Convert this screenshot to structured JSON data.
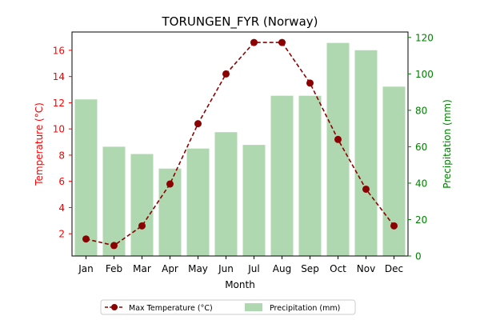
{
  "chart_data": {
    "type": "bar",
    "title": "TORUNGEN_FYR (Norway)",
    "xlabel": "Month",
    "ylabel_left": "Temperature (°C)",
    "ylabel_right": "Precipitation (mm)",
    "categories": [
      "Jan",
      "Feb",
      "Mar",
      "Apr",
      "May",
      "Jun",
      "Jul",
      "Aug",
      "Sep",
      "Oct",
      "Nov",
      "Dec"
    ],
    "ylim_left": [
      0.3,
      17.4
    ],
    "yticks_left": [
      "2",
      "4",
      "6",
      "8",
      "10",
      "12",
      "14",
      "16"
    ],
    "ylim_right": [
      0,
      123
    ],
    "yticks_right": [
      "0",
      "20",
      "40",
      "60",
      "80",
      "100",
      "120"
    ],
    "grid": false,
    "legend_placement": "bottom-center",
    "series": [
      {
        "name": "Max Temperature (°C)",
        "type": "line",
        "axis": "left",
        "color": "#8b0000",
        "values": [
          1.6,
          1.1,
          2.6,
          5.8,
          10.4,
          14.2,
          16.6,
          16.6,
          13.5,
          9.2,
          5.4,
          2.6
        ]
      },
      {
        "name": "Precipitation (mm)",
        "type": "bar",
        "axis": "right",
        "color": "#b0d8b0",
        "values": [
          86,
          60,
          56,
          48,
          59,
          68,
          61,
          88,
          88,
          117,
          113,
          93
        ]
      }
    ],
    "colors": {
      "left_axis": "#ff0000",
      "right_axis": "#008000"
    }
  }
}
